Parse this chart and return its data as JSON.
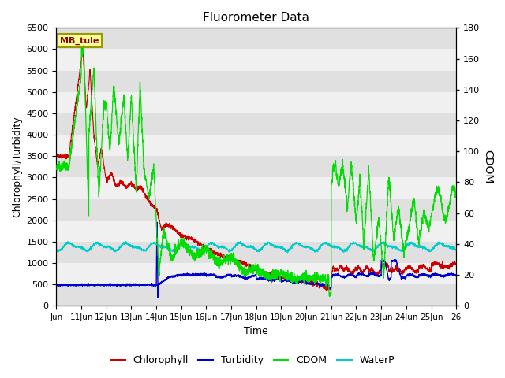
{
  "title": "Fluorometer Data",
  "xlabel": "Time",
  "ylabel_left": "Chlorophyll/Turbidity",
  "ylabel_right": "CDOM",
  "station_label": "MB_tule",
  "xlim": [
    10,
    26
  ],
  "ylim_left": [
    0,
    6500
  ],
  "ylim_right": [
    0,
    180
  ],
  "xtick_labels": [
    "Jun",
    "11Jun",
    "12Jun",
    "13Jun",
    "14Jun",
    "15Jun",
    "16Jun",
    "17Jun",
    "18Jun",
    "19Jun",
    "20Jun",
    "21Jun",
    "22Jun",
    "23Jun",
    "24Jun",
    "25Jun",
    "26"
  ],
  "xtick_positions": [
    10,
    11,
    12,
    13,
    14,
    15,
    16,
    17,
    18,
    19,
    20,
    21,
    22,
    23,
    24,
    25,
    26
  ],
  "ytick_left": [
    0,
    500,
    1000,
    1500,
    2000,
    2500,
    3000,
    3500,
    4000,
    4500,
    5000,
    5500,
    6000,
    6500
  ],
  "ytick_right": [
    0,
    20,
    40,
    60,
    80,
    100,
    120,
    140,
    160,
    180
  ],
  "colors": {
    "chlorophyll": "#cc0000",
    "turbidity": "#0000cc",
    "cdom": "#00dd00",
    "waterp": "#00cccc",
    "band_gray": "#e0e0e0",
    "band_white": "#f0f0f0",
    "station_bg": "#ffff99",
    "station_border": "#999900"
  },
  "legend_entries": [
    "Chlorophyll",
    "Turbidity",
    "CDOM",
    "WaterP"
  ]
}
